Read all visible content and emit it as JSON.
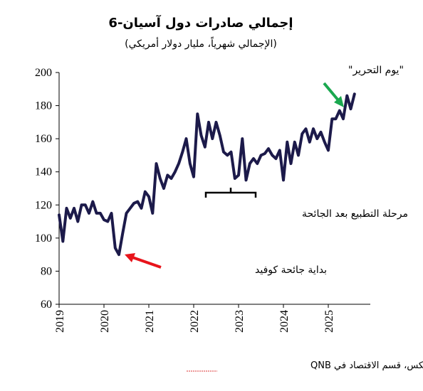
{
  "chart_data": {
    "type": "line",
    "title": "إجمالي صادرات دول آسيان-6",
    "subtitle": "(الإجمالي شهرياً، مليار دولار أمريكي)",
    "source": "المصادر: هيفر أناليتكس، قسم الاقتصاد في QNB",
    "ylim": [
      60,
      200
    ],
    "yticks": [
      "60",
      "80",
      "100",
      "120",
      "140",
      "160",
      "180",
      "200"
    ],
    "xticks": [
      "2019",
      "2020",
      "2021",
      "2022",
      "2023",
      "2024",
      "2025"
    ],
    "grid": false,
    "line_color": "#1c1a4a",
    "series": [
      {
        "values": [
          114,
          98,
          118,
          112,
          118,
          110,
          120,
          120,
          115,
          122,
          115,
          115,
          111,
          110,
          115,
          94,
          90,
          103,
          115,
          118,
          121,
          122,
          118,
          128,
          125,
          115,
          145,
          136,
          130,
          138,
          136,
          140,
          145,
          152,
          160,
          145,
          137,
          175,
          162,
          155,
          170,
          160,
          170,
          162,
          152,
          150,
          152,
          136,
          138,
          160,
          135,
          145,
          148,
          145,
          150,
          151,
          154,
          150,
          148,
          153,
          135,
          158,
          145,
          158,
          150,
          163,
          166,
          158,
          166,
          160,
          164,
          158,
          153,
          172,
          172,
          177,
          172,
          186,
          178,
          187
        ]
      }
    ],
    "annotations": [
      {
        "label": "بداية جائحة كوفيد",
        "arrow_color": "#e8141b"
      },
      {
        "label": "مرحلة التطبيع بعد الجائحة"
      },
      {
        "label": "\"يوم التحرير\"",
        "arrow_color": "#1aa84f"
      }
    ]
  }
}
